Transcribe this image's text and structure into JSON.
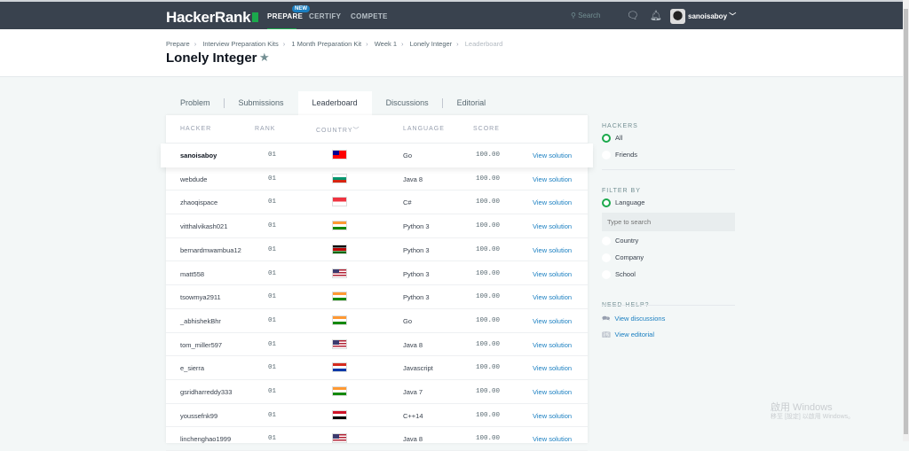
{
  "nav": {
    "logo": "HackerRank",
    "links": [
      "PREPARE",
      "CERTIFY",
      "COMPETE"
    ],
    "new_badge": "NEW",
    "search_placeholder": "Search",
    "username": "sanoisaboy",
    "accent": "#1ba94c"
  },
  "breadcrumbs": [
    "Prepare",
    "Interview Preparation Kits",
    "1 Month Preparation Kit",
    "Week 1",
    "Lonely Integer",
    "Leaderboard"
  ],
  "title": "Lonely Integer",
  "tabs": [
    "Problem",
    "Submissions",
    "Leaderboard",
    "Discussions",
    "Editorial"
  ],
  "active_tab": "Leaderboard",
  "table": {
    "headers": [
      "HACKER",
      "RANK",
      "COUNTRY",
      "LANGUAGE",
      "SCORE"
    ],
    "rows": [
      {
        "hacker": "sanoisaboy",
        "rank": "01",
        "country": "TW",
        "language": "Go",
        "score": "100.00",
        "action": "View solution"
      },
      {
        "hacker": "webdude",
        "rank": "01",
        "country": "BG",
        "language": "Java 8",
        "score": "100.00",
        "action": "View solution"
      },
      {
        "hacker": "zhaoqispace",
        "rank": "01",
        "country": "SG",
        "language": "C#",
        "score": "100.00",
        "action": "View solution"
      },
      {
        "hacker": "vitthalvikash021",
        "rank": "01",
        "country": "IN",
        "language": "Python 3",
        "score": "100.00",
        "action": "View solution"
      },
      {
        "hacker": "bernardmwambua12",
        "rank": "01",
        "country": "KE",
        "language": "Python 3",
        "score": "100.00",
        "action": "View solution"
      },
      {
        "hacker": "matt558",
        "rank": "01",
        "country": "US",
        "language": "Python 3",
        "score": "100.00",
        "action": "View solution"
      },
      {
        "hacker": "tsowmya2911",
        "rank": "01",
        "country": "IN",
        "language": "Python 3",
        "score": "100.00",
        "action": "View solution"
      },
      {
        "hacker": "_abhishekBhr",
        "rank": "01",
        "country": "IN",
        "language": "Go",
        "score": "100.00",
        "action": "View solution"
      },
      {
        "hacker": "tom_miller597",
        "rank": "01",
        "country": "US",
        "language": "Java 8",
        "score": "100.00",
        "action": "View solution"
      },
      {
        "hacker": "e_sierra",
        "rank": "01",
        "country": "PY",
        "language": "Javascript",
        "score": "100.00",
        "action": "View solution"
      },
      {
        "hacker": "gsridharreddy333",
        "rank": "01",
        "country": "IN",
        "language": "Java 7",
        "score": "100.00",
        "action": "View solution"
      },
      {
        "hacker": "youssefnk99",
        "rank": "01",
        "country": "EG",
        "language": "C++14",
        "score": "100.00",
        "action": "View solution"
      },
      {
        "hacker": "linchenghao1999",
        "rank": "01",
        "country": "US",
        "language": "Java 8",
        "score": "100.00",
        "action": "View solution"
      }
    ]
  },
  "sidebar": {
    "hackers_heading": "HACKERS",
    "hackers_options": [
      "All",
      "Friends"
    ],
    "hackers_selected": "All",
    "filter_heading": "FILTER BY",
    "filter_options": [
      "Language",
      "Country",
      "Company",
      "School"
    ],
    "filter_selected": "Language",
    "search_placeholder": "Type to search",
    "help_heading": "NEED HELP?",
    "help_links": [
      "View discussions",
      "View editorial"
    ]
  },
  "watermark": {
    "line1": "啟用 Windows",
    "line2": "移至 [設定] 以啟用 Windows。"
  }
}
